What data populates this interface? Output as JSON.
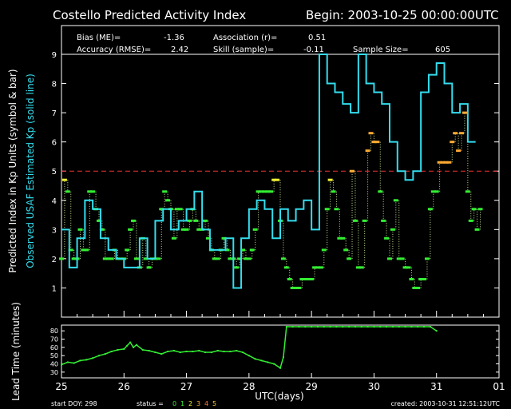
{
  "title": "Costello Predicted Activity Index",
  "begin": "Begin: 2003-10-25 00:00:00UTC",
  "stats": {
    "bias_label": "Bias (ME)=",
    "bias_value": "-1.36",
    "assoc_label": "Association (r)=",
    "assoc_value": "0.51",
    "acc_label": "Accuracy (RMSE)=",
    "acc_value": "2.42",
    "skill_label": "Skill (sample)=",
    "skill_value": "-0.11",
    "size_label": "Sample Size=",
    "size_value": "605"
  },
  "footer": {
    "start_doy": "start DOY:  298",
    "status_label": "status =",
    "status_digits": [
      "0",
      "1",
      "2",
      "3",
      "4",
      "5"
    ],
    "created": "created: 2003-10-31 12:51:12UTC"
  },
  "colors": {
    "predicted": "#33ee33",
    "status_colors": [
      "#33ee33",
      "#33ee33",
      "#eeee33",
      "#ffaa33",
      "#ff7733",
      "#ffcc33"
    ],
    "observed": "#33ddee",
    "threshold": "#ee3333"
  },
  "chart_data": [
    {
      "type": "line",
      "ylabel_primary": "Predicted Index in Kp Units (symbol & bar)",
      "ylabel_secondary": "Observed USAF Estimated Kp (solid line)",
      "ylim": [
        0,
        9
      ],
      "yticks": [
        1,
        2,
        3,
        4,
        5,
        6,
        7,
        8,
        9
      ],
      "xlim": [
        25,
        32
      ],
      "threshold": 5,
      "series": [
        {
          "role": "observed",
          "step": true,
          "x": [
            25.0,
            25.125,
            25.25,
            25.375,
            25.5,
            25.625,
            25.75,
            25.875,
            26.0,
            26.125,
            26.25,
            26.375,
            26.5,
            26.625,
            26.75,
            26.875,
            27.0,
            27.125,
            27.25,
            27.375,
            27.5,
            27.625,
            27.75,
            27.875,
            28.0,
            28.125,
            28.25,
            28.375,
            28.5,
            28.625,
            28.75,
            28.875,
            29.0,
            29.125,
            29.25,
            29.375,
            29.5,
            29.625,
            29.75,
            29.875,
            30.0,
            30.125,
            30.25,
            30.375,
            30.5,
            30.625,
            30.75,
            30.875,
            31.0,
            31.125,
            31.25,
            31.375,
            31.5
          ],
          "y": [
            3.0,
            1.7,
            2.7,
            4.0,
            3.7,
            2.7,
            2.3,
            2.0,
            1.7,
            1.7,
            2.7,
            2.0,
            3.3,
            3.7,
            3.0,
            3.3,
            3.7,
            4.3,
            3.0,
            2.3,
            2.3,
            2.7,
            1.0,
            2.7,
            3.7,
            4.0,
            3.7,
            2.7,
            3.7,
            3.3,
            3.7,
            4.0,
            3.0,
            9.0,
            8.0,
            7.7,
            7.3,
            7.0,
            9.0,
            8.0,
            7.7,
            7.3,
            6.0,
            5.0,
            4.7,
            5.0,
            7.7,
            8.3,
            8.7,
            8.0,
            7.0,
            7.3,
            6.0
          ]
        },
        {
          "role": "predicted",
          "x": [
            25.0,
            25.05,
            25.1,
            25.15,
            25.2,
            25.25,
            25.3,
            25.35,
            25.4,
            25.45,
            25.5,
            25.55,
            25.6,
            25.65,
            25.7,
            25.75,
            25.8,
            25.85,
            25.9,
            25.95,
            26.0,
            26.05,
            26.1,
            26.15,
            26.2,
            26.25,
            26.3,
            26.35,
            26.4,
            26.45,
            26.5,
            26.55,
            26.6,
            26.65,
            26.7,
            26.75,
            26.8,
            26.85,
            26.9,
            26.95,
            27.0,
            27.05,
            27.1,
            27.15,
            27.2,
            27.25,
            27.3,
            27.35,
            27.4,
            27.45,
            27.5,
            27.55,
            27.6,
            27.65,
            27.7,
            27.75,
            27.8,
            27.85,
            27.9,
            27.95,
            28.0,
            28.05,
            28.1,
            28.15,
            28.2,
            28.25,
            28.3,
            28.35,
            28.4,
            28.45,
            28.5,
            28.55,
            28.6,
            28.65,
            28.7,
            28.75,
            28.8,
            28.85,
            28.9,
            28.95,
            29.0,
            29.05,
            29.1,
            29.15,
            29.2,
            29.25,
            29.3,
            29.35,
            29.4,
            29.45,
            29.5,
            29.55,
            29.6,
            29.65,
            29.7,
            29.75,
            29.8,
            29.85,
            29.9,
            29.95,
            30.0,
            30.05,
            30.1,
            30.15,
            30.2,
            30.25,
            30.3,
            30.35,
            30.4,
            30.45,
            30.5,
            30.55,
            30.6,
            30.65,
            30.7,
            30.75,
            30.8,
            30.85,
            30.9,
            30.95,
            31.0,
            31.05,
            31.1,
            31.15,
            31.2,
            31.25,
            31.3,
            31.35,
            31.4,
            31.45,
            31.5,
            31.55,
            31.6,
            31.65,
            31.7
          ],
          "y": [
            2.0,
            4.7,
            4.3,
            2.3,
            2.0,
            2.0,
            3.0,
            2.3,
            2.3,
            4.3,
            4.3,
            3.7,
            3.3,
            3.0,
            2.0,
            2.0,
            2.0,
            2.3,
            2.0,
            2.0,
            2.0,
            2.3,
            3.0,
            3.3,
            2.0,
            1.7,
            2.7,
            2.0,
            1.7,
            2.0,
            2.0,
            2.0,
            3.7,
            4.3,
            4.0,
            3.7,
            2.7,
            3.7,
            3.7,
            3.0,
            3.0,
            3.3,
            3.7,
            3.3,
            3.0,
            3.0,
            3.3,
            2.7,
            2.3,
            2.0,
            2.0,
            2.3,
            2.7,
            2.3,
            2.0,
            2.0,
            1.7,
            2.0,
            2.3,
            2.0,
            2.0,
            2.3,
            3.0,
            4.3,
            4.3,
            4.3,
            4.3,
            4.3,
            4.7,
            4.7,
            3.3,
            2.0,
            1.7,
            1.3,
            1.0,
            1.0,
            1.0,
            1.3,
            1.3,
            1.3,
            1.3,
            1.7,
            1.7,
            1.7,
            2.3,
            3.7,
            4.7,
            4.3,
            3.7,
            2.7,
            2.7,
            2.3,
            2.0,
            5.0,
            3.3,
            1.7,
            1.7,
            3.3,
            5.7,
            6.3,
            6.0,
            6.0,
            4.3,
            3.3,
            2.7,
            2.0,
            3.0,
            4.0,
            2.0,
            2.0,
            1.7,
            1.7,
            1.3,
            1.0,
            1.0,
            1.3,
            1.3,
            2.0,
            3.7,
            4.3,
            4.3,
            5.3,
            5.3,
            5.3,
            5.3,
            6.0,
            6.3,
            5.7,
            6.3,
            7.0,
            4.3,
            3.3,
            3.7,
            3.0,
            3.7
          ]
        }
      ]
    },
    {
      "type": "line",
      "ylabel": "Lead Time (minutes)",
      "xlabel": "UTC(days)",
      "ylim": [
        25,
        85
      ],
      "yticks": [
        30,
        40,
        50,
        60,
        70,
        80
      ],
      "xticks": [
        "25",
        "26",
        "27",
        "28",
        "29",
        "30",
        "31",
        "01"
      ],
      "xlim": [
        25,
        32
      ],
      "series": [
        {
          "role": "lead_time",
          "x": [
            25.0,
            25.1,
            25.2,
            25.3,
            25.4,
            25.5,
            25.6,
            25.7,
            25.8,
            25.9,
            26.0,
            26.05,
            26.1,
            26.15,
            26.2,
            26.3,
            26.4,
            26.5,
            26.6,
            26.7,
            26.8,
            26.9,
            27.0,
            27.1,
            27.2,
            27.3,
            27.4,
            27.5,
            27.6,
            27.7,
            27.8,
            27.9,
            28.0,
            28.1,
            28.2,
            28.3,
            28.4,
            28.5,
            28.55,
            28.6,
            28.7,
            28.8,
            28.9,
            29.0,
            29.1,
            29.2,
            29.3,
            29.4,
            29.5,
            29.6,
            29.7,
            29.8,
            29.9,
            30.0,
            30.1,
            30.2,
            30.3,
            30.4,
            30.5,
            30.6,
            30.7,
            30.8,
            30.9,
            31.0
          ],
          "y": [
            39,
            42,
            41,
            44,
            45,
            47,
            50,
            52,
            55,
            57,
            58,
            62,
            66,
            60,
            63,
            57,
            56,
            54,
            52,
            55,
            56,
            54,
            55,
            55,
            56,
            54,
            54,
            56,
            55,
            55,
            56,
            54,
            50,
            46,
            44,
            42,
            40,
            35,
            48,
            85,
            85,
            85,
            85,
            85,
            85,
            85,
            85,
            85,
            85,
            85,
            85,
            85,
            85,
            85,
            85,
            85,
            85,
            85,
            85,
            85,
            85,
            85,
            85,
            80
          ]
        }
      ]
    }
  ]
}
